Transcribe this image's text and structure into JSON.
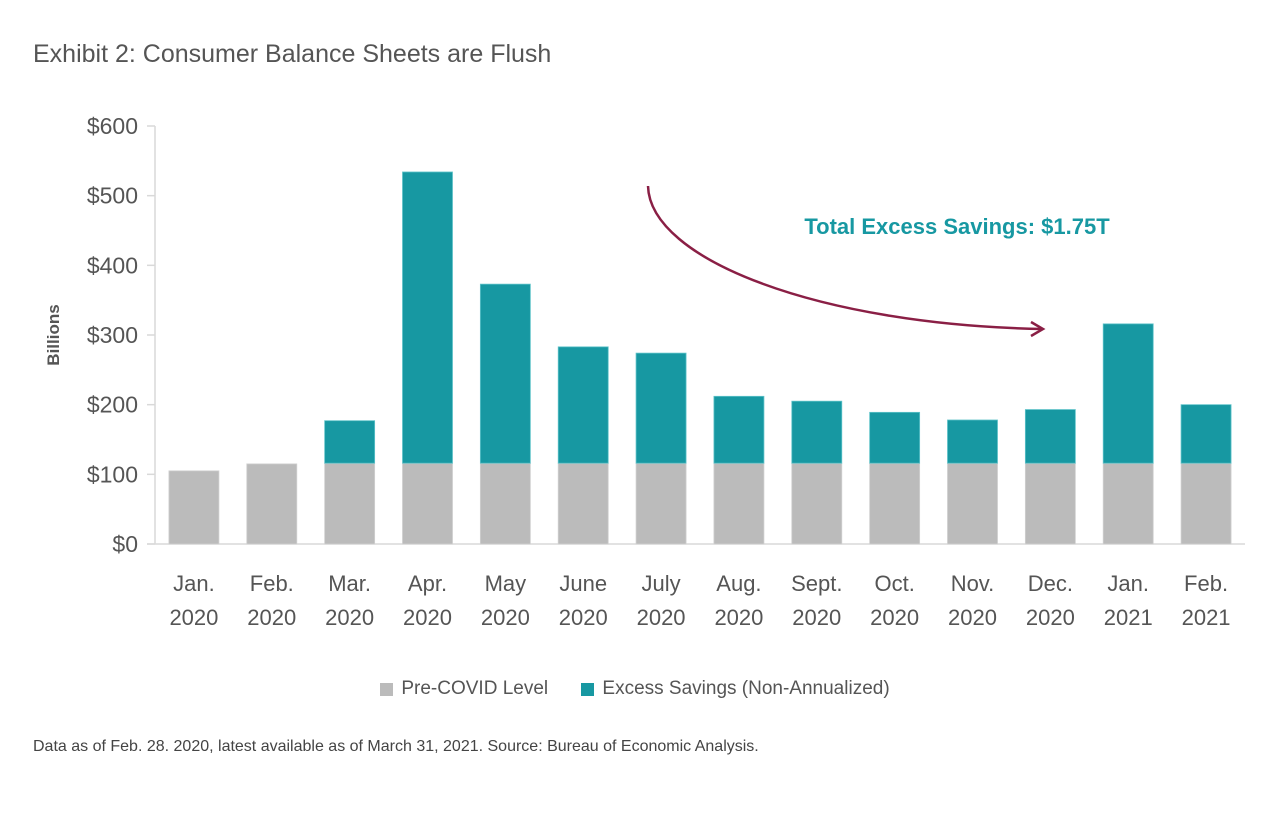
{
  "title": "Exhibit 2: Consumer Balance Sheets are Flush",
  "source": "Data as of Feb. 28. 2020, latest available as of March 31, 2021. Source: Bureau of Economic Analysis.",
  "chart_data": {
    "type": "bar",
    "stacked": true,
    "ylabel": "Billions",
    "ylim": [
      0,
      600
    ],
    "yticks": [
      "$0",
      "$100",
      "$200",
      "$300",
      "$400",
      "$500",
      "$600"
    ],
    "ytick_values": [
      0,
      100,
      200,
      300,
      400,
      500,
      600
    ],
    "categories": [
      [
        "Jan.",
        "2020"
      ],
      [
        "Feb.",
        "2020"
      ],
      [
        "Mar.",
        "2020"
      ],
      [
        "Apr.",
        "2020"
      ],
      [
        "May",
        "2020"
      ],
      [
        "June",
        "2020"
      ],
      [
        "July",
        "2020"
      ],
      [
        "Aug.",
        "2020"
      ],
      [
        "Sept.",
        "2020"
      ],
      [
        "Oct.",
        "2020"
      ],
      [
        "Nov.",
        "2020"
      ],
      [
        "Dec.",
        "2020"
      ],
      [
        "Jan.",
        "2021"
      ],
      [
        "Feb.",
        "2021"
      ]
    ],
    "series": [
      {
        "name": "Pre-COVID Level",
        "color": "#bbbbbb",
        "values": [
          105,
          115,
          116,
          116,
          116,
          116,
          116,
          116,
          116,
          116,
          116,
          116,
          116,
          116
        ]
      },
      {
        "name": "Excess Savings (Non-Annualized)",
        "color": "#1798a2",
        "values": [
          0,
          0,
          61,
          418,
          257,
          167,
          158,
          96,
          89,
          73,
          62,
          77,
          200,
          84
        ]
      }
    ],
    "legend_position": "bottom",
    "grid": false,
    "annotation": {
      "text": "Total Excess Savings: $1.75T",
      "color": "#1798a2",
      "arrow_color": "#8a1f45"
    }
  }
}
